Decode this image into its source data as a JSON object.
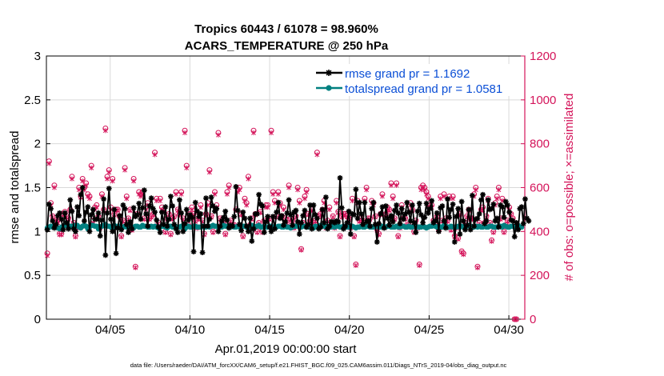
{
  "chart_data": {
    "type": "line",
    "title": "Tropics 60443 / 61078 = 98.960%",
    "subtitle": "ACARS_TEMPERATURE @ 250 hPa",
    "xlabel": "Apr.01,2019 00:00:00 start",
    "ylabel": "rmse and totalspread",
    "ylabel_right": "# of obs: o=possible; ×=assimilated",
    "x_tick_labels": [
      "04/05",
      "04/10",
      "04/15",
      "04/20",
      "04/25",
      "04/30"
    ],
    "x_tick_days": [
      5,
      10,
      15,
      20,
      25,
      30
    ],
    "xlim_days": [
      1,
      31
    ],
    "y_ticks": [
      "0",
      "0.5",
      "1",
      "1.5",
      "2",
      "2.5",
      "3"
    ],
    "ylim": [
      0,
      3
    ],
    "y_right_ticks": [
      "0",
      "200",
      "400",
      "600",
      "800",
      "1000",
      "1200"
    ],
    "ylim_right": [
      0,
      1200
    ],
    "grid": true,
    "legend_position": "top-right",
    "colors": {
      "rmse": "#000000",
      "totalspread": "#008080",
      "obs": "#d4145a",
      "legend_text": "#0b4fd6"
    },
    "series": [
      {
        "name": "rmse grand pr = 1.1692",
        "values": [
          1.02,
          1.31,
          1.26,
          1.12,
          1.04,
          1.08,
          1.18,
          1.21,
          1.14,
          1.02,
          1.21,
          1.1,
          1.03,
          1.36,
          1.23,
          1.03,
          1.0,
          1.28,
          1.18,
          1.42,
          1.5,
          1.12,
          1.22,
          1.28,
          1.0,
          1.19,
          1.25,
          1.14,
          1.14,
          1.21,
          0.95,
          1.13,
          1.37,
          0.73,
          1.21,
          1.49,
          1.14,
          1.0,
          1.25,
          0.75,
          1.04,
          1.18,
          1.02,
          1.3,
          1.26,
          1.08,
          0.99,
          1.11,
          1.03,
          1.27,
          1.17,
          1.19,
          1.32,
          1.14,
          1.27,
          1.47,
          1.2,
          1.06,
          1.29,
          1.38,
          1.26,
          1.22,
          1.13,
          1.05,
          0.99,
          1.22,
          1.08,
          1.28,
          1.06,
          1.14,
          1.4,
          1.29,
          1.08,
          1.03,
          0.99,
          1.36,
          1.21,
          1.0,
          1.09,
          1.25,
          1.13,
          1.19,
          1.16,
          0.77,
          1.33,
          1.23,
          1.17,
          1.2,
          0.76,
          1.06,
          1.38,
          1.06,
          1.14,
          1.39,
          1.29,
          1.23,
          1.26,
          1.0,
          1.06,
          1.12,
          1.16,
          1.23,
          1.13,
          1.04,
          1.07,
          1.06,
          1.17,
          1.51,
          1.24,
          1.08,
          1.01,
          1.22,
          1.15,
          1.06,
          1.0,
          1.15,
          0.89,
          1.03,
          1.2,
          1.2,
          1.42,
          1.31,
          1.29,
          0.99,
          1.11,
          1.17,
          1.05,
          1.0,
          1.17,
          1.03,
          1.22,
          1.33,
          1.15,
          1.18,
          1.07,
          1.11,
          1.21,
          1.36,
          1.19,
          1.07,
          1.22,
          1.24,
          1.11,
          0.97,
          1.1,
          1.18,
          1.24,
          1.05,
          1.08,
          1.3,
          1.03,
          1.3,
          1.19,
          1.15,
          1.03,
          1.05,
          1.25,
          1.1,
          1.39,
          1.03,
          1.06,
          1.11,
          1.11,
          1.1,
          1.12,
          1.11,
          1.61,
          1.27,
          1.03,
          1.06,
          1.1,
          1.23,
          0.97,
          1.2,
          1.19,
          1.48,
          1.15,
          1.33,
          1.2,
          1.08,
          1.33,
          1.11,
          1.12,
          1.06,
          1.26,
          1.33,
          1.08,
          0.88,
          1.09,
          1.2,
          1.28,
          1.04,
          1.29,
          1.15,
          1.07,
          1.18,
          1.11,
          1.24,
          1.3,
          1.21,
          1.09,
          1.26,
          1.14,
          1.2,
          1.33,
          1.22,
          1.12,
          1.3,
          1.1,
          0.99,
          1.23,
          1.32,
          1.19,
          1.1,
          1.16,
          1.32,
          1.21,
          1.26,
          1.35,
          1.1,
          1.12,
          1.21,
          1.0,
          1.27,
          1.29,
          1.12,
          1.04,
          1.37,
          1.16,
          1.25,
          1.31,
          0.88,
          1.17,
          1.26,
          0.97,
          1.34,
          1.12,
          1.02,
          1.07,
          1.25,
          1.02,
          1.41,
          1.06,
          1.14,
          1.15,
          1.2,
          1.36,
          1.42,
          1.09,
          1.12,
          1.36,
          1.25,
          1.26,
          1.31,
          1.12,
          1.15,
          1.05,
          1.3,
          1.28,
          1.16,
          1.34,
          1.3,
          1.22,
          1.13,
          1.12,
          0.94,
          1.1,
          1.02,
          1.26,
          1.28,
          1.09,
          1.37,
          1.15,
          1.12
        ]
      },
      {
        "name": "totalspread grand pr = 1.0581",
        "values": [
          1.04,
          1.05,
          1.06,
          1.05,
          1.07,
          1.06,
          1.04,
          1.03,
          1.05,
          1.06,
          1.07,
          1.08,
          1.05,
          1.06,
          1.06,
          1.06,
          1.07,
          1.07,
          1.05,
          1.04,
          1.06,
          1.07,
          1.06,
          1.03,
          1.05,
          1.07,
          1.07,
          1.06,
          1.06,
          1.03,
          1.05,
          1.06,
          1.07,
          1.08,
          1.06,
          1.06,
          1.05,
          1.04,
          1.07,
          1.05,
          1.06,
          1.06,
          1.04,
          1.05,
          1.06,
          1.05,
          1.05,
          1.07,
          1.05,
          1.04,
          1.06,
          1.06,
          1.05,
          1.05,
          1.07,
          1.06,
          1.06,
          1.05,
          1.05,
          1.06,
          1.05,
          1.06,
          1.05,
          1.04,
          1.05,
          1.06,
          1.06,
          1.05,
          1.04,
          1.06,
          1.06,
          1.05,
          1.06,
          1.05,
          1.05,
          1.05,
          1.06,
          1.05,
          1.03,
          1.05,
          1.06,
          1.05,
          1.05,
          1.06,
          1.06,
          1.05,
          1.05,
          1.05,
          1.06,
          1.05,
          1.05,
          1.06,
          1.05,
          1.06,
          1.07,
          1.06,
          1.06,
          1.05,
          1.05,
          1.05,
          1.07,
          1.06,
          1.06,
          1.05,
          1.05,
          1.06,
          1.05,
          1.05,
          1.06,
          1.05,
          1.05,
          1.06,
          1.06,
          1.05,
          1.05,
          1.06,
          1.07,
          1.06,
          1.05,
          1.06,
          1.07,
          1.05,
          1.05,
          1.06,
          1.05,
          1.05,
          1.06,
          1.06,
          1.05,
          1.04,
          1.05,
          1.06,
          1.06,
          1.05,
          1.05,
          1.06,
          1.05,
          1.05,
          1.04,
          1.05,
          1.06,
          1.06,
          1.06,
          1.05,
          1.05,
          1.06,
          1.06,
          1.05,
          1.05,
          1.06,
          1.05,
          1.04,
          1.06,
          1.05,
          1.06,
          1.07,
          1.06,
          1.06,
          1.05,
          1.06,
          1.05,
          1.05,
          1.06,
          1.05,
          1.06,
          1.06,
          1.05,
          1.05,
          1.06,
          1.05,
          1.05,
          1.05,
          1.06,
          1.06,
          1.05,
          1.04,
          1.05,
          1.05,
          1.06,
          1.05,
          1.05,
          1.06,
          1.06,
          1.05,
          1.05,
          1.05,
          1.06,
          1.07,
          1.05,
          1.05,
          1.06,
          1.05,
          1.05,
          1.06,
          1.06,
          1.05,
          1.05,
          1.05,
          1.06,
          1.05,
          1.05,
          1.06,
          1.06,
          1.05,
          1.05,
          1.06,
          1.05,
          1.05,
          1.06,
          1.06,
          1.05,
          1.05,
          1.05,
          1.06,
          1.05,
          1.04,
          1.05,
          1.06,
          1.06,
          1.07,
          1.06,
          1.05,
          1.06,
          1.05,
          1.05,
          1.07,
          1.06,
          1.05,
          1.05,
          1.06,
          1.05,
          1.05,
          1.05,
          1.06,
          1.05,
          1.06,
          1.05,
          1.05,
          1.06,
          1.07,
          1.06,
          1.05,
          1.05,
          1.06,
          1.05,
          1.06,
          1.05,
          1.05,
          1.06,
          1.05,
          1.05,
          1.06,
          1.06,
          1.05,
          1.05,
          1.05,
          1.06,
          1.06,
          1.05,
          1.07,
          1.06,
          1.05,
          1.05,
          1.06,
          1.06,
          1.05,
          1.06,
          1.07,
          1.05,
          1.05
        ]
      }
    ],
    "obs_possible": [
      300,
      720,
      530,
      470,
      610,
      450,
      450,
      390,
      390,
      480,
      490,
      470,
      460,
      500,
      650,
      440,
      380,
      420,
      600,
      560,
      640,
      600,
      620,
      570,
      560,
      700,
      450,
      510,
      520,
      470,
      420,
      570,
      500,
      870,
      650,
      680,
      510,
      640,
      480,
      500,
      500,
      470,
      380,
      450,
      690,
      560,
      460,
      500,
      410,
      640,
      240,
      480,
      580,
      570,
      580,
      460,
      510,
      530,
      460,
      470,
      480,
      760,
      550,
      440,
      550,
      510,
      500,
      400,
      460,
      480,
      390,
      460,
      470,
      580,
      500,
      480,
      580,
      460,
      860,
      700,
      430,
      480,
      510,
      480,
      450,
      420,
      460,
      520,
      450,
      390,
      480,
      530,
      680,
      470,
      400,
      580,
      520,
      850,
      460,
      440,
      440,
      390,
      580,
      610,
      450,
      430,
      430,
      500,
      590,
      600,
      480,
      380,
      550,
      530,
      650,
      430,
      460,
      860,
      480,
      400,
      440,
      490,
      400,
      450,
      520,
      520,
      460,
      860,
      580,
      540,
      470,
      580,
      530,
      470,
      510,
      460,
      440,
      610,
      460,
      450,
      420,
      470,
      600,
      540,
      320,
      440,
      560,
      590,
      480,
      450,
      500,
      440,
      450,
      760,
      470,
      480,
      500,
      540,
      420,
      450,
      510,
      430,
      470,
      420,
      540,
      490,
      380,
      470,
      480,
      480,
      470,
      460,
      420,
      550,
      380,
      250,
      540,
      450,
      460,
      450,
      550,
      600,
      460,
      460,
      540,
      530,
      470,
      410,
      390,
      480,
      570,
      420,
      480,
      510,
      500,
      620,
      560,
      460,
      620,
      380,
      420,
      520,
      460,
      460,
      430,
      430,
      530,
      500,
      400,
      450,
      420,
      250,
      600,
      610,
      600,
      580,
      560,
      520,
      520,
      450,
      430,
      470,
      410,
      560,
      450,
      570,
      460,
      450,
      560,
      410,
      560,
      380,
      420,
      370,
      480,
      310,
      300,
      440,
      470,
      500,
      460,
      460,
      570,
      600,
      240,
      440,
      500,
      510,
      440,
      470,
      550,
      440,
      360,
      400,
      530,
      560,
      600,
      460,
      550,
      400,
      430,
      450,
      510,
      480,
      460,
      0,
      0
    ],
    "obs_assimilated": [
      290,
      710,
      520,
      465,
      600,
      445,
      440,
      385,
      385,
      475,
      485,
      465,
      455,
      495,
      640,
      435,
      375,
      415,
      590,
      555,
      630,
      590,
      610,
      560,
      550,
      690,
      440,
      500,
      510,
      465,
      415,
      560,
      495,
      860,
      640,
      670,
      500,
      630,
      475,
      495,
      495,
      465,
      375,
      445,
      680,
      550,
      455,
      495,
      405,
      630,
      235,
      475,
      570,
      560,
      570,
      455,
      500,
      520,
      455,
      465,
      475,
      750,
      540,
      435,
      540,
      500,
      495,
      395,
      455,
      475,
      385,
      455,
      465,
      570,
      495,
      475,
      570,
      455,
      850,
      690,
      425,
      475,
      500,
      475,
      445,
      415,
      455,
      510,
      445,
      385,
      475,
      520,
      670,
      465,
      395,
      570,
      510,
      840,
      455,
      435,
      435,
      385,
      570,
      600,
      445,
      425,
      425,
      495,
      580,
      590,
      475,
      375,
      540,
      520,
      640,
      425,
      455,
      850,
      475,
      395,
      435,
      485,
      395,
      445,
      510,
      510,
      455,
      850,
      570,
      530,
      465,
      570,
      520,
      465,
      500,
      455,
      435,
      600,
      455,
      445,
      415,
      465,
      590,
      530,
      315,
      435,
      550,
      580,
      475,
      445,
      495,
      435,
      445,
      750,
      465,
      475,
      495,
      530,
      415,
      445,
      500,
      425,
      465,
      415,
      530,
      485,
      375,
      465,
      475,
      475,
      465,
      455,
      415,
      540,
      375,
      245,
      530,
      445,
      455,
      445,
      540,
      590,
      455,
      455,
      530,
      520,
      465,
      405,
      385,
      475,
      560,
      415,
      475,
      500,
      495,
      610,
      550,
      455,
      610,
      375,
      415,
      510,
      455,
      455,
      425,
      425,
      520,
      495,
      395,
      445,
      415,
      245,
      590,
      600,
      590,
      570,
      550,
      510,
      510,
      445,
      425,
      465,
      405,
      550,
      445,
      560,
      455,
      445,
      550,
      405,
      550,
      375,
      415,
      365,
      475,
      305,
      295,
      435,
      465,
      495,
      455,
      455,
      560,
      590,
      235,
      435,
      495,
      500,
      435,
      465,
      540,
      435,
      355,
      395,
      520,
      550,
      590,
      455,
      540,
      395,
      425,
      445,
      500,
      475,
      455,
      0,
      0
    ]
  },
  "footer": {
    "text": "data file: /Users/raeder/DAI/ATM_forcXX/CAM6_setup/f.e21.FHIST_BGC.f09_025.CAM6assim.011/Diags_NTrS_2019-04/obs_diag_output.nc"
  }
}
